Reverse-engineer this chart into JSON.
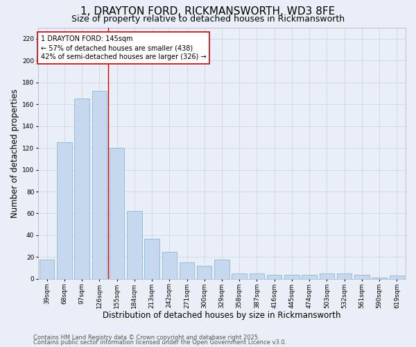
{
  "title": "1, DRAYTON FORD, RICKMANSWORTH, WD3 8FE",
  "subtitle": "Size of property relative to detached houses in Rickmansworth",
  "xlabel": "Distribution of detached houses by size in Rickmansworth",
  "ylabel": "Number of detached properties",
  "categories": [
    "39sqm",
    "68sqm",
    "97sqm",
    "126sqm",
    "155sqm",
    "184sqm",
    "213sqm",
    "242sqm",
    "271sqm",
    "300sqm",
    "329sqm",
    "358sqm",
    "387sqm",
    "416sqm",
    "445sqm",
    "474sqm",
    "503sqm",
    "532sqm",
    "561sqm",
    "590sqm",
    "619sqm"
  ],
  "values": [
    18,
    125,
    165,
    172,
    120,
    62,
    37,
    25,
    15,
    12,
    18,
    5,
    5,
    4,
    4,
    4,
    5,
    5,
    4,
    1,
    3
  ],
  "bar_color": "#c5d8ee",
  "bar_edge_color": "#7bafd4",
  "grid_color": "#d0dae8",
  "background_color": "#eaeff7",
  "property_line_x": 3.5,
  "property_line_color": "#cc0000",
  "annotation_text": "1 DRAYTON FORD: 145sqm\n← 57% of detached houses are smaller (438)\n42% of semi-detached houses are larger (326) →",
  "annotation_box_color": "#ffffff",
  "annotation_box_edge_color": "#cc0000",
  "ylim": [
    0,
    230
  ],
  "yticks": [
    0,
    20,
    40,
    60,
    80,
    100,
    120,
    140,
    160,
    180,
    200,
    220
  ],
  "footer_line1": "Contains HM Land Registry data © Crown copyright and database right 2025.",
  "footer_line2": "Contains public sector information licensed under the Open Government Licence v3.0.",
  "title_fontsize": 11,
  "subtitle_fontsize": 9,
  "tick_fontsize": 6.5,
  "label_fontsize": 8.5,
  "annotation_fontsize": 7,
  "footer_fontsize": 6
}
